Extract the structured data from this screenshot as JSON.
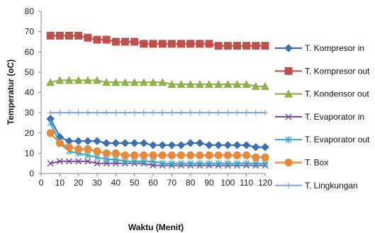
{
  "chart_data": {
    "type": "line",
    "title": "",
    "xlabel": "Waktu (Menit)",
    "ylabel": "Temperatur (oC)",
    "xlim": [
      0,
      120
    ],
    "ylim": [
      0,
      80
    ],
    "xticks": [
      0,
      10,
      20,
      30,
      40,
      50,
      60,
      70,
      80,
      90,
      100,
      110,
      120
    ],
    "yticks": [
      0,
      10,
      20,
      30,
      40,
      50,
      60,
      70,
      80
    ],
    "grid": false,
    "legend_position": "right",
    "x": [
      5,
      10,
      15,
      20,
      25,
      30,
      35,
      40,
      45,
      50,
      55,
      60,
      65,
      70,
      75,
      80,
      85,
      90,
      95,
      100,
      105,
      110,
      115,
      120
    ],
    "series": [
      {
        "name": "T. Kompresor in",
        "color": "#3a6fb5",
        "marker": "diamond",
        "values": [
          27,
          18,
          16,
          16,
          16,
          16,
          15,
          15,
          15,
          15,
          15,
          14,
          14,
          14,
          14,
          15,
          15,
          14,
          14,
          14,
          14,
          14,
          13,
          13
        ]
      },
      {
        "name": "T. Kompresor out",
        "color": "#c0504d",
        "marker": "square",
        "values": [
          68,
          68,
          68,
          68,
          67,
          66,
          66,
          65,
          65,
          65,
          64,
          64,
          64,
          64,
          64,
          64,
          64,
          64,
          63,
          63,
          63,
          63,
          63,
          63
        ]
      },
      {
        "name": "T. Kondensor out",
        "color": "#8fb14a",
        "marker": "triangle",
        "values": [
          45,
          46,
          46,
          46,
          46,
          46,
          45,
          45,
          45,
          45,
          45,
          45,
          45,
          44,
          44,
          44,
          44,
          44,
          44,
          44,
          44,
          44,
          43,
          43
        ]
      },
      {
        "name": "T. Evaporator in",
        "color": "#7a52a0",
        "marker": "x",
        "values": [
          5,
          6,
          6,
          6,
          6,
          5,
          5,
          5,
          5,
          5,
          5,
          4,
          4,
          4,
          4,
          4,
          4,
          4,
          4,
          4,
          4,
          4,
          4,
          4
        ]
      },
      {
        "name": "T. Evaporator out",
        "color": "#3fa7c6",
        "marker": "star",
        "values": [
          25,
          15,
          11,
          10,
          9,
          8,
          7,
          7,
          6,
          6,
          6,
          6,
          5,
          5,
          5,
          5,
          5,
          5,
          5,
          5,
          5,
          5,
          5,
          5
        ]
      },
      {
        "name": "T. Box",
        "color": "#e58a3b",
        "marker": "circle",
        "values": [
          20,
          15,
          13,
          12,
          12,
          11,
          10,
          10,
          9,
          9,
          9,
          9,
          9,
          9,
          9,
          9,
          9,
          9,
          9,
          9,
          9,
          9,
          8,
          8
        ]
      },
      {
        "name": "T. Lingkungan",
        "color": "#8aa8d8",
        "marker": "plus",
        "values": [
          30,
          30,
          30,
          30,
          30,
          30,
          30,
          30,
          30,
          30,
          30,
          30,
          30,
          30,
          30,
          30,
          30,
          30,
          30,
          30,
          30,
          30,
          30,
          30
        ]
      }
    ]
  }
}
